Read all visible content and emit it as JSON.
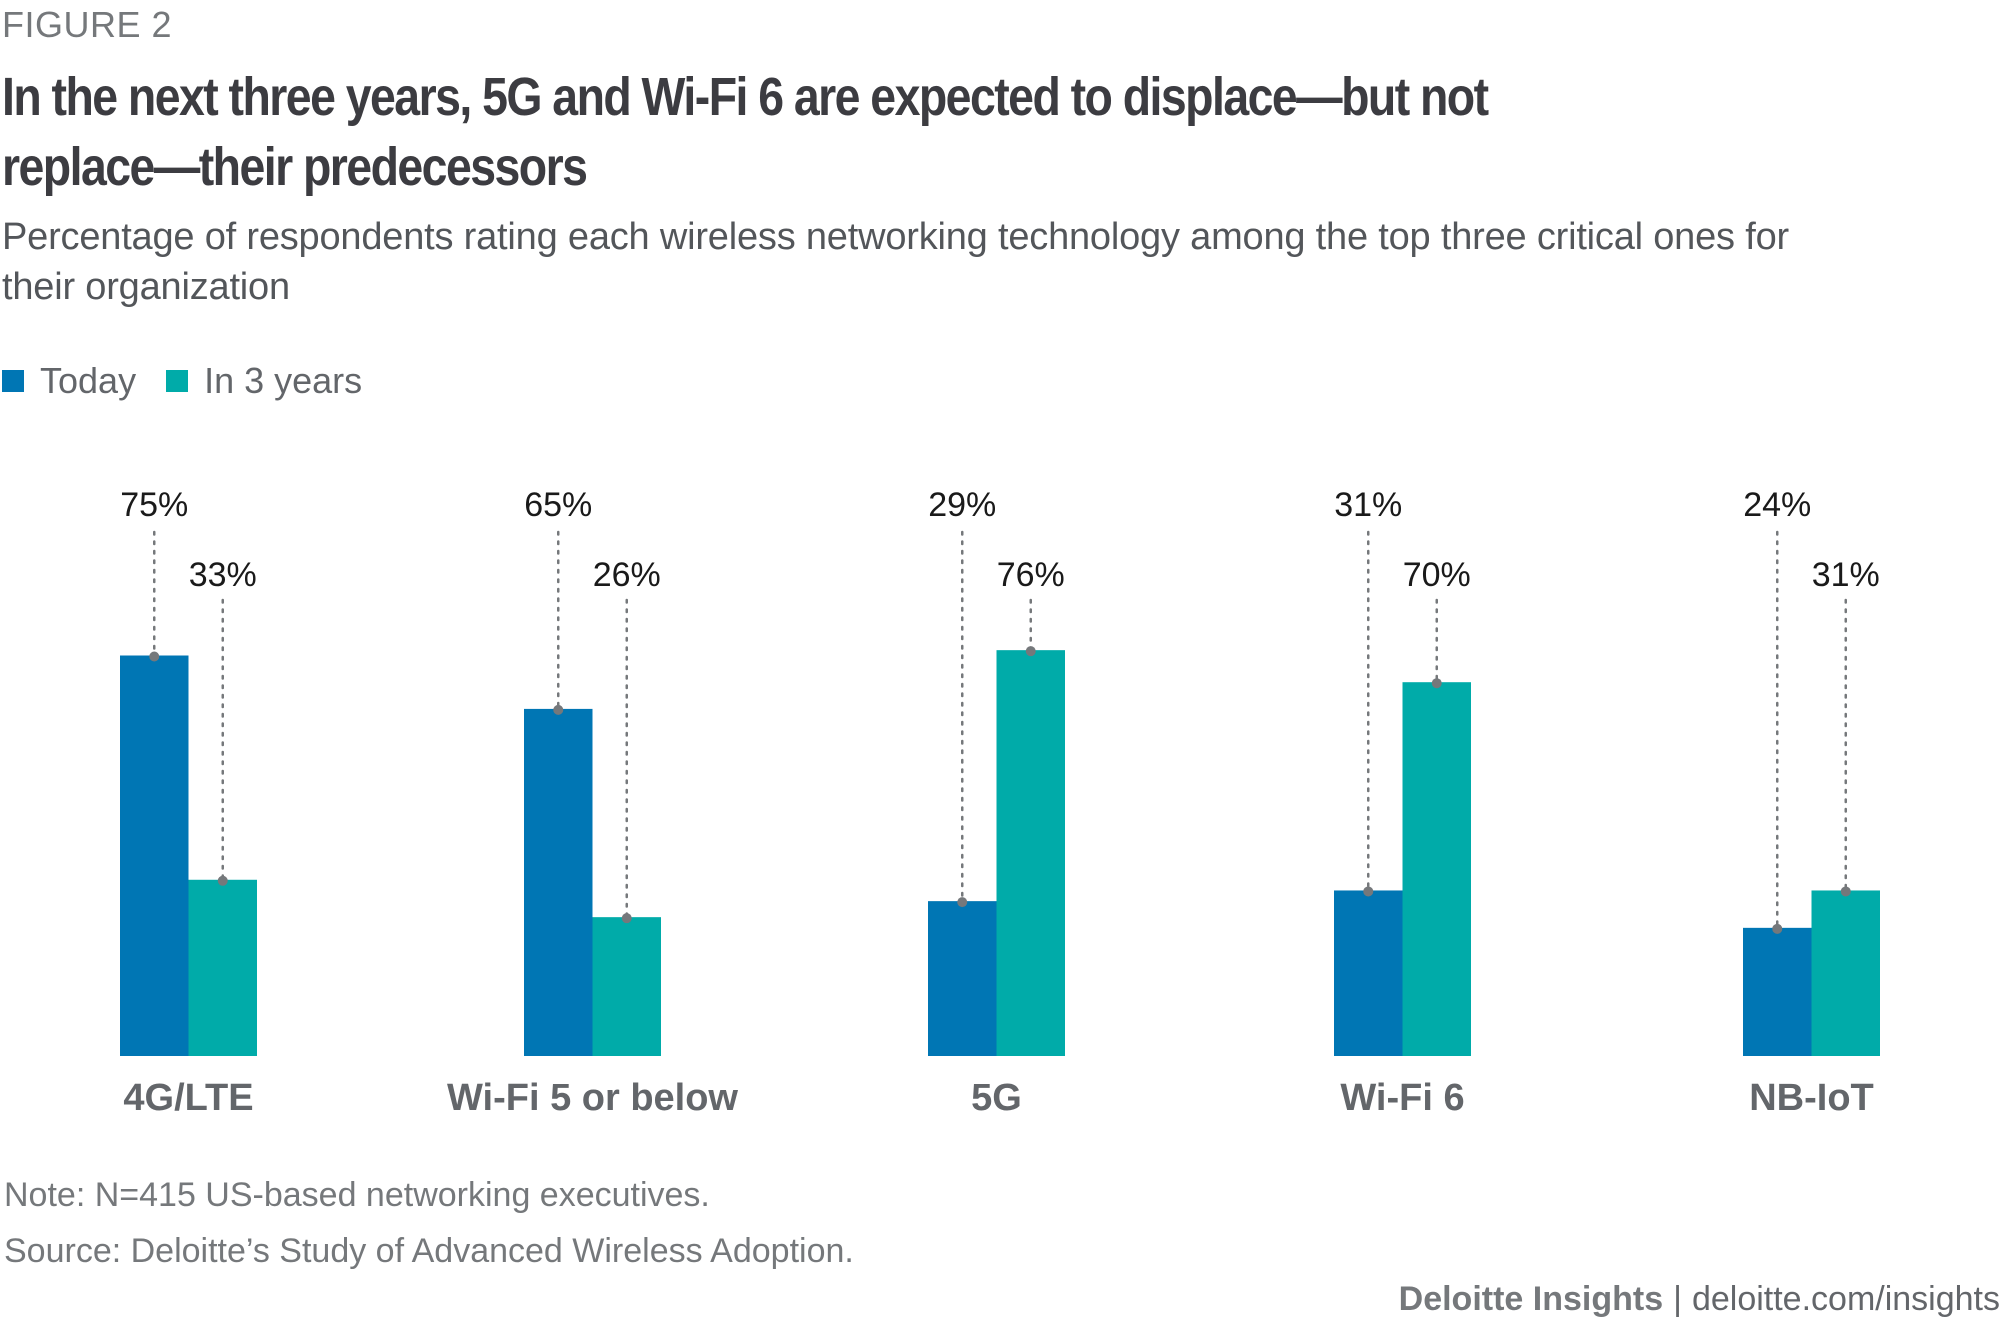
{
  "header": {
    "figure_label": "FIGURE 2",
    "title": "In the next three years, 5G and Wi-Fi 6 are expected to displace—but not replace—their predecessors",
    "subtitle": "Percentage of respondents rating each wireless networking technology among the top three critical ones for their organization"
  },
  "legend": [
    {
      "label": "Today",
      "color": "#0076b4"
    },
    {
      "label": "In 3 years",
      "color": "#00aba9"
    }
  ],
  "chart_data": {
    "type": "bar",
    "title": "In the next three years, 5G and Wi-Fi 6 are expected to displace—but not replace—their predecessors",
    "subtitle": "Percentage of respondents rating each wireless networking technology among the top three critical ones for their organization",
    "xlabel": "",
    "ylabel": "",
    "ylim": [
      0,
      100
    ],
    "grid": false,
    "legend_position": "top-left",
    "categories": [
      "4G/LTE",
      "Wi-Fi 5 or below",
      "5G",
      "Wi-Fi 6",
      "NB-IoT"
    ],
    "series": [
      {
        "name": "Today",
        "color": "#0076b4",
        "values": [
          75,
          65,
          29,
          31,
          24
        ],
        "labels": [
          "75%",
          "65%",
          "29%",
          "31%",
          "24%"
        ]
      },
      {
        "name": "In 3 years",
        "color": "#00aba9",
        "values": [
          33,
          26,
          76,
          70,
          31
        ],
        "labels": [
          "33%",
          "26%",
          "76%",
          "70%",
          "31%"
        ]
      }
    ]
  },
  "notes": {
    "note": "Note: N=415 US-based networking executives.",
    "source": "Source: Deloitte’s Study of Advanced Wireless Adoption."
  },
  "footer": {
    "brand": "Deloitte Insights",
    "separator": "|",
    "url": "deloitte.com/insights"
  }
}
